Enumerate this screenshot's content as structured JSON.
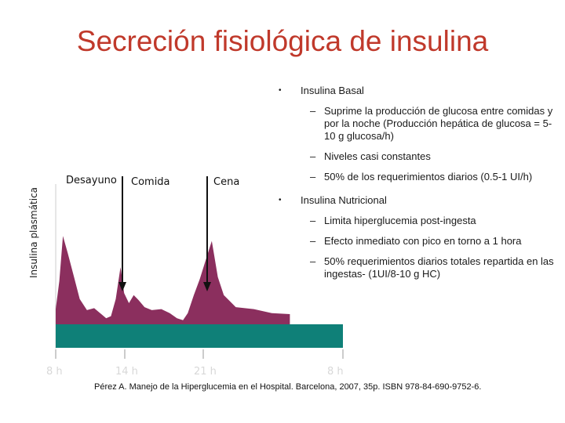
{
  "title": "Secreción fisiológica de insulina",
  "chart_data": {
    "type": "area",
    "ylabel": "Insulina plasmática",
    "x_ticks": [
      "8 h",
      "14 h",
      "21 h",
      "8 h"
    ],
    "meals": [
      "Desayuno",
      "Comida",
      "Cena"
    ],
    "series": [
      {
        "values": [
          [
            0,
            0.12
          ],
          [
            0.3,
            0.4
          ],
          [
            0.6,
            0.85
          ],
          [
            1.0,
            0.68
          ],
          [
            1.5,
            0.45
          ],
          [
            2.0,
            0.22
          ],
          [
            2.6,
            0.11
          ],
          [
            3.2,
            0.13
          ],
          [
            3.8,
            0.07
          ],
          [
            4.2,
            0.03
          ],
          [
            4.6,
            0.05
          ],
          [
            5.0,
            0.22
          ],
          [
            5.4,
            0.54
          ],
          [
            5.7,
            0.28
          ],
          [
            6.1,
            0.18
          ],
          [
            6.5,
            0.26
          ],
          [
            6.9,
            0.21
          ],
          [
            7.4,
            0.14
          ],
          [
            8.0,
            0.11
          ],
          [
            8.8,
            0.12
          ],
          [
            9.5,
            0.08
          ],
          [
            10.1,
            0.03
          ],
          [
            10.6,
            0.01
          ],
          [
            11.0,
            0.08
          ],
          [
            11.5,
            0.26
          ],
          [
            12.0,
            0.42
          ],
          [
            12.6,
            0.65
          ],
          [
            13.0,
            0.8
          ],
          [
            13.5,
            0.44
          ],
          [
            14.0,
            0.26
          ],
          [
            15.0,
            0.14
          ],
          [
            16.5,
            0.12
          ],
          [
            18.0,
            0.08
          ],
          [
            19.5,
            0.07
          ]
        ]
      }
    ],
    "colors": {
      "area": "#8b2f5e",
      "basal_band": "#0f8078",
      "arrow": "#111111"
    }
  },
  "bullets": [
    {
      "text": "Insulina Basal",
      "bold": true,
      "subs": [
        "Suprime la producción de glucosa entre comidas y  por la noche (Producción hepática de glucosa = 5-10 g glucosa/h)",
        "Niveles casi constantes",
        "50% de los requerimientos diarios (0.5-1 UI/h)"
      ]
    },
    {
      "text": "Insulina Nutricional",
      "bold": true,
      "subs": [
        "Limita  hiperglucemia post-ingesta",
        "Efecto inmediato con pico en torno a 1 hora",
        "50% requerimientos diarios totales repartida en las ingestas- (1UI/8-10 g HC)"
      ]
    }
  ],
  "citation": "Pérez A. Manejo de la Hiperglucemia en el Hospital. Barcelona, 2007, 35p. ISBN 978-84-690-9752-6."
}
